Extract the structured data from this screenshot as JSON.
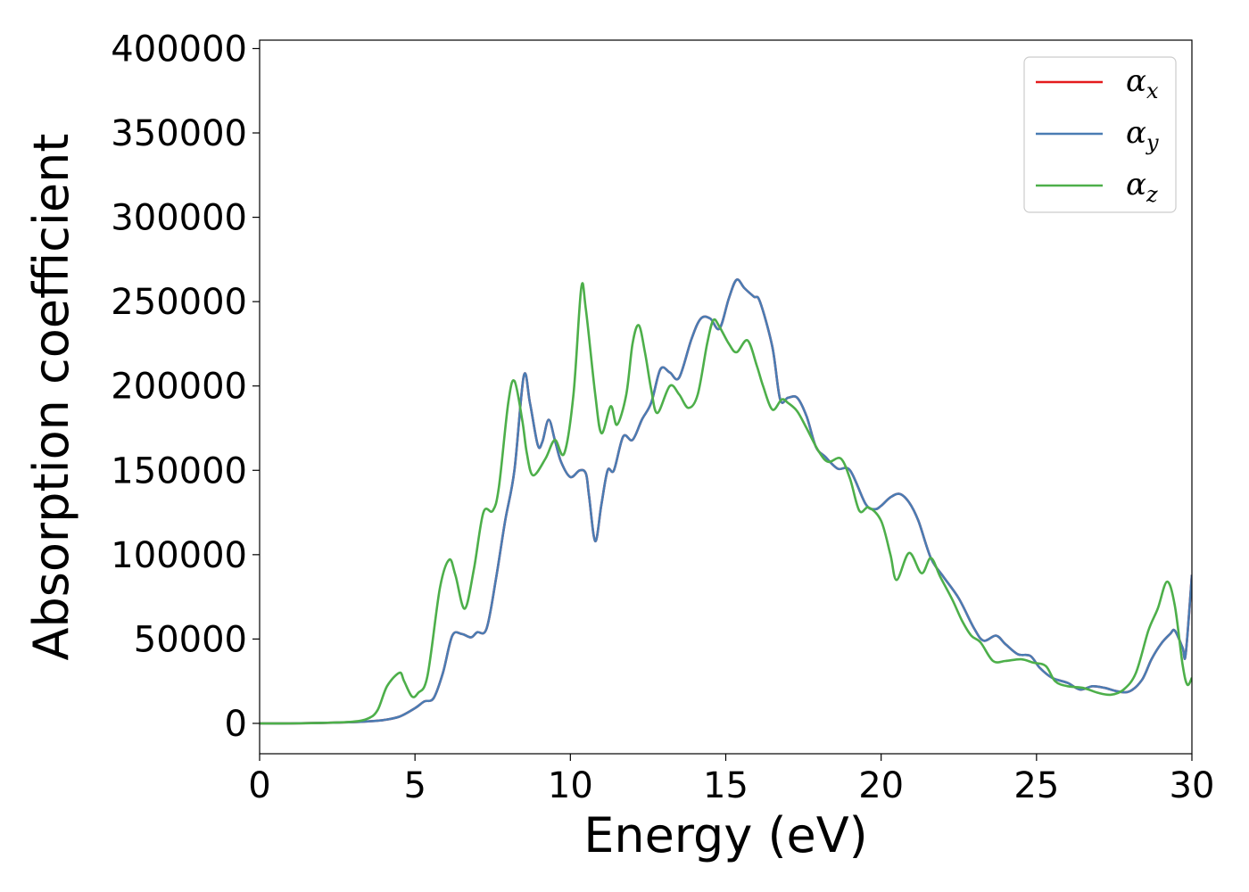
{
  "chart_data": {
    "type": "line",
    "xlabel": "Energy (eV)",
    "ylabel": "Absorption coefficient",
    "xlim": [
      0,
      30
    ],
    "ylim": [
      -18000,
      405000
    ],
    "xticks": [
      0,
      5,
      10,
      15,
      20,
      25,
      30
    ],
    "yticks": [
      0,
      50000,
      100000,
      150000,
      200000,
      250000,
      300000,
      350000,
      400000
    ],
    "grid": false,
    "legend_position": "top-right",
    "series": [
      {
        "name": "α",
        "sub": "x",
        "color": "#e41a1c",
        "points": [
          [
            0,
            0
          ],
          [
            1,
            0
          ],
          [
            2,
            300
          ],
          [
            3,
            700
          ],
          [
            3.5,
            1200
          ],
          [
            4,
            2000
          ],
          [
            4.5,
            4000
          ],
          [
            5,
            9000
          ],
          [
            5.3,
            13000
          ],
          [
            5.6,
            15000
          ],
          [
            5.9,
            30000
          ],
          [
            6.2,
            52000
          ],
          [
            6.5,
            53000
          ],
          [
            6.8,
            51000
          ],
          [
            7,
            54000
          ],
          [
            7.3,
            56000
          ],
          [
            7.6,
            85000
          ],
          [
            7.9,
            120000
          ],
          [
            8.2,
            150000
          ],
          [
            8.5,
            206000
          ],
          [
            8.7,
            190000
          ],
          [
            8.95,
            165000
          ],
          [
            9.1,
            167000
          ],
          [
            9.3,
            180000
          ],
          [
            9.5,
            168000
          ],
          [
            9.7,
            155000
          ],
          [
            10,
            146000
          ],
          [
            10.3,
            150000
          ],
          [
            10.5,
            148000
          ],
          [
            10.6,
            135000
          ],
          [
            10.8,
            108000
          ],
          [
            11,
            130000
          ],
          [
            11.2,
            150000
          ],
          [
            11.4,
            150000
          ],
          [
            11.7,
            170000
          ],
          [
            12,
            168000
          ],
          [
            12.3,
            180000
          ],
          [
            12.6,
            190000
          ],
          [
            12.9,
            210000
          ],
          [
            13.2,
            208000
          ],
          [
            13.5,
            205000
          ],
          [
            13.9,
            228000
          ],
          [
            14.2,
            240000
          ],
          [
            14.5,
            240000
          ],
          [
            14.8,
            234000
          ],
          [
            15.1,
            252000
          ],
          [
            15.35,
            263000
          ],
          [
            15.6,
            258000
          ],
          [
            15.9,
            253000
          ],
          [
            16.1,
            250000
          ],
          [
            16.5,
            223000
          ],
          [
            16.75,
            192000
          ],
          [
            17,
            193000
          ],
          [
            17.3,
            193000
          ],
          [
            17.6,
            182000
          ],
          [
            17.9,
            164000
          ],
          [
            18.2,
            158000
          ],
          [
            18.6,
            151000
          ],
          [
            19,
            150000
          ],
          [
            19.5,
            130000
          ],
          [
            19.8,
            127000
          ],
          [
            20,
            129000
          ],
          [
            20.3,
            134000
          ],
          [
            20.6,
            136000
          ],
          [
            20.9,
            131000
          ],
          [
            21.2,
            120000
          ],
          [
            21.6,
            98000
          ],
          [
            22,
            87000
          ],
          [
            22.5,
            74000
          ],
          [
            23,
            56000
          ],
          [
            23.3,
            49000
          ],
          [
            23.7,
            52000
          ],
          [
            24,
            47000
          ],
          [
            24.4,
            41000
          ],
          [
            24.8,
            40000
          ],
          [
            25.1,
            33000
          ],
          [
            25.5,
            27000
          ],
          [
            26,
            24000
          ],
          [
            26.4,
            20000
          ],
          [
            26.8,
            22000
          ],
          [
            27.2,
            21000
          ],
          [
            27.6,
            19000
          ],
          [
            28,
            19000
          ],
          [
            28.4,
            26000
          ],
          [
            28.7,
            38000
          ],
          [
            29,
            47000
          ],
          [
            29.3,
            53000
          ],
          [
            29.45,
            55000
          ],
          [
            29.7,
            45000
          ],
          [
            29.8,
            41000
          ],
          [
            30,
            88000
          ]
        ]
      },
      {
        "name": "α",
        "sub": "y",
        "color": "#4a7cb3",
        "points": [
          [
            0,
            0
          ],
          [
            1,
            0
          ],
          [
            2,
            300
          ],
          [
            3,
            700
          ],
          [
            3.5,
            1200
          ],
          [
            4,
            2000
          ],
          [
            4.5,
            4000
          ],
          [
            5,
            9000
          ],
          [
            5.3,
            13000
          ],
          [
            5.6,
            15000
          ],
          [
            5.9,
            30000
          ],
          [
            6.2,
            52000
          ],
          [
            6.5,
            53000
          ],
          [
            6.8,
            51000
          ],
          [
            7,
            54000
          ],
          [
            7.3,
            56000
          ],
          [
            7.6,
            85000
          ],
          [
            7.9,
            120000
          ],
          [
            8.2,
            150000
          ],
          [
            8.5,
            206000
          ],
          [
            8.7,
            190000
          ],
          [
            8.95,
            165000
          ],
          [
            9.1,
            167000
          ],
          [
            9.3,
            180000
          ],
          [
            9.5,
            168000
          ],
          [
            9.7,
            155000
          ],
          [
            10,
            146000
          ],
          [
            10.3,
            150000
          ],
          [
            10.5,
            148000
          ],
          [
            10.6,
            135000
          ],
          [
            10.8,
            108000
          ],
          [
            11,
            130000
          ],
          [
            11.2,
            150000
          ],
          [
            11.4,
            150000
          ],
          [
            11.7,
            170000
          ],
          [
            12,
            168000
          ],
          [
            12.3,
            180000
          ],
          [
            12.6,
            190000
          ],
          [
            12.9,
            210000
          ],
          [
            13.2,
            208000
          ],
          [
            13.5,
            205000
          ],
          [
            13.9,
            228000
          ],
          [
            14.2,
            240000
          ],
          [
            14.5,
            240000
          ],
          [
            14.8,
            234000
          ],
          [
            15.1,
            252000
          ],
          [
            15.35,
            263000
          ],
          [
            15.6,
            258000
          ],
          [
            15.9,
            253000
          ],
          [
            16.1,
            250000
          ],
          [
            16.5,
            223000
          ],
          [
            16.75,
            192000
          ],
          [
            17,
            193000
          ],
          [
            17.3,
            193000
          ],
          [
            17.6,
            182000
          ],
          [
            17.9,
            164000
          ],
          [
            18.2,
            158000
          ],
          [
            18.6,
            151000
          ],
          [
            19,
            150000
          ],
          [
            19.5,
            130000
          ],
          [
            19.8,
            127000
          ],
          [
            20,
            129000
          ],
          [
            20.3,
            134000
          ],
          [
            20.6,
            136000
          ],
          [
            20.9,
            131000
          ],
          [
            21.2,
            120000
          ],
          [
            21.6,
            98000
          ],
          [
            22,
            87000
          ],
          [
            22.5,
            74000
          ],
          [
            23,
            56000
          ],
          [
            23.3,
            49000
          ],
          [
            23.7,
            52000
          ],
          [
            24,
            47000
          ],
          [
            24.4,
            41000
          ],
          [
            24.8,
            40000
          ],
          [
            25.1,
            33000
          ],
          [
            25.5,
            27000
          ],
          [
            26,
            24000
          ],
          [
            26.4,
            20000
          ],
          [
            26.8,
            22000
          ],
          [
            27.2,
            21000
          ],
          [
            27.6,
            19000
          ],
          [
            28,
            19000
          ],
          [
            28.4,
            26000
          ],
          [
            28.7,
            38000
          ],
          [
            29,
            47000
          ],
          [
            29.3,
            53000
          ],
          [
            29.45,
            55000
          ],
          [
            29.7,
            45000
          ],
          [
            29.8,
            41000
          ],
          [
            30,
            88000
          ]
        ]
      },
      {
        "name": "α",
        "sub": "z",
        "color": "#4daf4a",
        "points": [
          [
            0,
            0
          ],
          [
            1,
            0
          ],
          [
            2,
            300
          ],
          [
            3,
            1000
          ],
          [
            3.5,
            3000
          ],
          [
            3.8,
            8000
          ],
          [
            4.1,
            22000
          ],
          [
            4.5,
            30000
          ],
          [
            4.65,
            25000
          ],
          [
            4.9,
            16000
          ],
          [
            5.1,
            18000
          ],
          [
            5.4,
            28000
          ],
          [
            5.8,
            80000
          ],
          [
            6.1,
            97000
          ],
          [
            6.3,
            88000
          ],
          [
            6.6,
            68000
          ],
          [
            6.9,
            92000
          ],
          [
            7.2,
            125000
          ],
          [
            7.5,
            126000
          ],
          [
            7.7,
            140000
          ],
          [
            8,
            190000
          ],
          [
            8.2,
            203000
          ],
          [
            8.45,
            180000
          ],
          [
            8.6,
            160000
          ],
          [
            8.8,
            147000
          ],
          [
            9.2,
            157000
          ],
          [
            9.5,
            168000
          ],
          [
            9.8,
            160000
          ],
          [
            10.1,
            195000
          ],
          [
            10.35,
            258000
          ],
          [
            10.5,
            245000
          ],
          [
            10.8,
            195000
          ],
          [
            11,
            172000
          ],
          [
            11.3,
            188000
          ],
          [
            11.5,
            177000
          ],
          [
            11.8,
            195000
          ],
          [
            12,
            225000
          ],
          [
            12.2,
            236000
          ],
          [
            12.4,
            220000
          ],
          [
            12.6,
            198000
          ],
          [
            12.8,
            184000
          ],
          [
            13.2,
            200000
          ],
          [
            13.5,
            195000
          ],
          [
            13.8,
            187000
          ],
          [
            14.1,
            195000
          ],
          [
            14.4,
            225000
          ],
          [
            14.6,
            239000
          ],
          [
            14.8,
            235000
          ],
          [
            15.1,
            225000
          ],
          [
            15.35,
            220000
          ],
          [
            15.7,
            227000
          ],
          [
            16,
            212000
          ],
          [
            16.2,
            200000
          ],
          [
            16.5,
            186000
          ],
          [
            16.8,
            192000
          ],
          [
            17,
            190000
          ],
          [
            17.3,
            185000
          ],
          [
            17.6,
            175000
          ],
          [
            18,
            161000
          ],
          [
            18.3,
            155000
          ],
          [
            18.7,
            157000
          ],
          [
            19,
            145000
          ],
          [
            19.3,
            126000
          ],
          [
            19.6,
            128000
          ],
          [
            20,
            120000
          ],
          [
            20.3,
            100000
          ],
          [
            20.5,
            85000
          ],
          [
            20.9,
            101000
          ],
          [
            21.3,
            89000
          ],
          [
            21.6,
            98000
          ],
          [
            21.9,
            87000
          ],
          [
            22.3,
            73000
          ],
          [
            22.6,
            61000
          ],
          [
            22.9,
            52000
          ],
          [
            23.2,
            48000
          ],
          [
            23.6,
            37000
          ],
          [
            24,
            37000
          ],
          [
            24.5,
            38000
          ],
          [
            24.9,
            36000
          ],
          [
            25.3,
            34000
          ],
          [
            25.6,
            25000
          ],
          [
            26,
            22000
          ],
          [
            26.5,
            21000
          ],
          [
            27,
            18000
          ],
          [
            27.4,
            17000
          ],
          [
            27.8,
            20000
          ],
          [
            28.2,
            30000
          ],
          [
            28.6,
            55000
          ],
          [
            28.9,
            68000
          ],
          [
            29.2,
            84000
          ],
          [
            29.45,
            70000
          ],
          [
            29.7,
            35000
          ],
          [
            29.85,
            23000
          ],
          [
            30,
            27000
          ]
        ]
      }
    ]
  }
}
